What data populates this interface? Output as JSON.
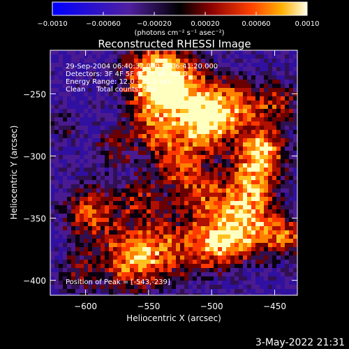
{
  "chart_data": {
    "type": "heatmap",
    "title": "Reconstructed RHESSI Image",
    "xlabel": "Heliocentric X (arcsec)",
    "ylabel": "Heliocentric Y (arcsec)",
    "xlim": [
      -628,
      -432
    ],
    "ylim": [
      -412,
      -215
    ],
    "x_ticks": [
      -600,
      -550,
      -500,
      -450
    ],
    "x_tick_labels": [
      "−600",
      "−550",
      "−500",
      "−450"
    ],
    "y_ticks": [
      -400,
      -350,
      -300,
      -250
    ],
    "y_tick_labels": [
      "−400",
      "−350",
      "−300",
      "−250"
    ],
    "colorbar": {
      "range": [
        -0.001,
        0.001
      ],
      "ticks": [
        -0.001,
        -0.0006,
        -0.0002,
        0.0002,
        0.0006,
        0.001
      ],
      "tick_labels": [
        "−0.0010",
        "−0.00060",
        "−0.00020",
        "0.00020",
        "0.00060",
        "0.0010"
      ],
      "units": "(photons cm⁻² s⁻¹ asec⁻²)",
      "colors": [
        "#0000ff",
        "#2020c0",
        "#602090",
        "#000000",
        "#600000",
        "#c01000",
        "#ff6000",
        "#ffc000",
        "#ffffc0"
      ]
    },
    "annotations": [
      "29-Sep-2004 06:40:32.000 to 06:41:20.000",
      "Detectors: 3F 4F 5F 6F 7F 8F, Att 0",
      "Energy Range: 12.0 - 25.0 keV",
      "Clean     Total counts: 594"
    ],
    "peak_text": "Position of Peak = [-543,-239]",
    "peak": [
      -543,
      -239
    ]
  },
  "footer": {
    "date": "3-May-2022 21:31"
  }
}
